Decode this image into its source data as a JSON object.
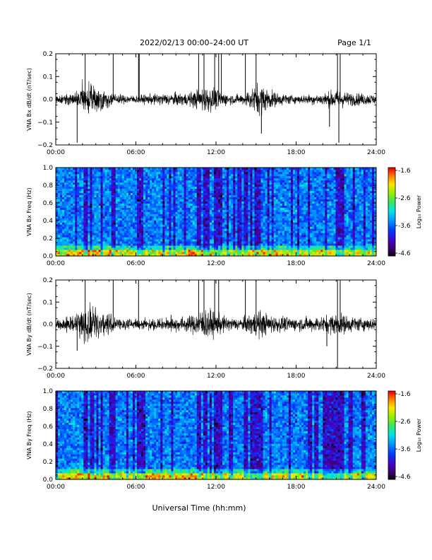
{
  "header": {
    "title": "2022/02/13  00:00–24:00 UT",
    "page": "Page 1/1"
  },
  "xlabel": "Universal Time (hh:mm)",
  "chart_data": [
    {
      "type": "line",
      "ylabel": "VNA Bx dB/dt (nT/sec)",
      "xlim": [
        0,
        24
      ],
      "ylim": [
        -0.2,
        0.2
      ],
      "yticks": [
        "0.2",
        "0.1",
        "0.0",
        "−0.1",
        "−0.2"
      ],
      "xticks": [
        "00:00",
        "06:00",
        "12:00",
        "18:00",
        "24:00"
      ],
      "color": "#000000",
      "base_noise": 0.012,
      "envelope": [
        [
          0,
          0.012
        ],
        [
          1.5,
          0.02
        ],
        [
          2.0,
          0.05
        ],
        [
          2.6,
          0.045
        ],
        [
          3.5,
          0.03
        ],
        [
          4.5,
          0.015
        ],
        [
          6,
          0.012
        ],
        [
          8,
          0.018
        ],
        [
          10,
          0.02
        ],
        [
          11.3,
          0.04
        ],
        [
          12,
          0.03
        ],
        [
          13,
          0.015
        ],
        [
          14,
          0.015
        ],
        [
          15.2,
          0.05
        ],
        [
          15.6,
          0.04
        ],
        [
          16.5,
          0.02
        ],
        [
          18,
          0.012
        ],
        [
          20,
          0.018
        ],
        [
          21,
          0.03
        ],
        [
          22,
          0.02
        ],
        [
          23,
          0.018
        ],
        [
          24,
          0.015
        ]
      ],
      "spikes": [
        [
          1.6,
          -0.19
        ],
        [
          2.2,
          0.21
        ],
        [
          4.3,
          0.21
        ],
        [
          6.2,
          0.21
        ],
        [
          6.25,
          0.21
        ],
        [
          10.7,
          0.21
        ],
        [
          11.1,
          0.21
        ],
        [
          11.9,
          0.21
        ],
        [
          12.2,
          0.21
        ],
        [
          12.4,
          0.21
        ],
        [
          14.2,
          0.21
        ],
        [
          15.0,
          0.21
        ],
        [
          15.4,
          -0.15
        ],
        [
          21.1,
          0.21
        ],
        [
          21.3,
          0.21
        ],
        [
          21.2,
          -0.19
        ],
        [
          20.5,
          -0.12
        ]
      ]
    },
    {
      "type": "heatmap",
      "ylabel": "VNA Bx Freq (Hz)",
      "xlim": [
        0,
        24
      ],
      "ylim": [
        0.0,
        1.0
      ],
      "yticks": [
        "1.0",
        "0.8",
        "0.6",
        "0.4",
        "0.2",
        "0.0"
      ],
      "xticks": [
        "00:00",
        "06:00",
        "12:00",
        "18:00",
        "24:00"
      ],
      "colorbar": {
        "label": "Log₁₀ Power",
        "ticks": [
          "-1.6",
          "-2.6",
          "-3.6",
          "-4.6"
        ],
        "range": [
          -4.6,
          -1.6
        ]
      },
      "dark_bands": [
        2.2,
        4.3,
        6.2,
        10.7,
        11.1,
        11.9,
        12.2,
        14.2,
        15.0,
        21.1,
        21.3
      ],
      "low_freq_enhancement": [
        [
          2.5,
          0.18
        ],
        [
          10.5,
          0.1
        ],
        [
          15.5,
          0.12
        ]
      ]
    },
    {
      "type": "line",
      "ylabel": "VNA By dB/dt (nT/sec)",
      "xlim": [
        0,
        24
      ],
      "ylim": [
        -0.2,
        0.2
      ],
      "yticks": [
        "0.2",
        "0.1",
        "0.0",
        "−0.1",
        "−0.2"
      ],
      "xticks": [
        "00:00",
        "06:00",
        "12:00",
        "18:00",
        "24:00"
      ],
      "color": "#000000",
      "base_noise": 0.014,
      "envelope": [
        [
          0,
          0.015
        ],
        [
          1.5,
          0.025
        ],
        [
          2.0,
          0.06
        ],
        [
          2.6,
          0.06
        ],
        [
          3.5,
          0.045
        ],
        [
          4.5,
          0.02
        ],
        [
          6,
          0.015
        ],
        [
          8,
          0.02
        ],
        [
          10,
          0.025
        ],
        [
          11.3,
          0.05
        ],
        [
          12,
          0.035
        ],
        [
          13,
          0.02
        ],
        [
          14,
          0.02
        ],
        [
          15.2,
          0.045
        ],
        [
          15.6,
          0.035
        ],
        [
          16.5,
          0.025
        ],
        [
          18,
          0.02
        ],
        [
          20,
          0.025
        ],
        [
          21,
          0.035
        ],
        [
          22,
          0.025
        ],
        [
          23,
          0.02
        ],
        [
          24,
          0.02
        ]
      ],
      "spikes": [
        [
          1.6,
          -0.12
        ],
        [
          2.2,
          0.21
        ],
        [
          4.3,
          0.21
        ],
        [
          6.2,
          0.21
        ],
        [
          10.7,
          0.21
        ],
        [
          11.1,
          0.21
        ],
        [
          11.9,
          0.21
        ],
        [
          12.2,
          0.21
        ],
        [
          14.2,
          0.21
        ],
        [
          15.0,
          0.21
        ],
        [
          21.1,
          0.21
        ],
        [
          21.3,
          0.21
        ],
        [
          21.1,
          -0.2
        ],
        [
          20.3,
          -0.1
        ]
      ]
    },
    {
      "type": "heatmap",
      "ylabel": "VNA By Freq (Hz)",
      "xlim": [
        0,
        24
      ],
      "ylim": [
        0.0,
        1.0
      ],
      "yticks": [
        "1.0",
        "0.8",
        "0.6",
        "0.4",
        "0.2",
        "0.0"
      ],
      "xticks": [
        "00:00",
        "06:00",
        "12:00",
        "18:00",
        "24:00"
      ],
      "colorbar": {
        "label": "Log₁₀ Power",
        "ticks": [
          "-1.6",
          "-2.6",
          "-3.6",
          "-4.6"
        ],
        "range": [
          -4.6,
          -1.6
        ]
      },
      "dark_bands": [
        2.2,
        4.3,
        6.2,
        10.7,
        11.1,
        11.9,
        12.2,
        14.2,
        15.0,
        19.0,
        19.5,
        20.0,
        20.5,
        21.1,
        21.3,
        22.0,
        23.0
      ],
      "low_freq_enhancement": [
        [
          2.5,
          0.2
        ],
        [
          7.0,
          0.12
        ],
        [
          10.0,
          0.1
        ]
      ]
    }
  ]
}
